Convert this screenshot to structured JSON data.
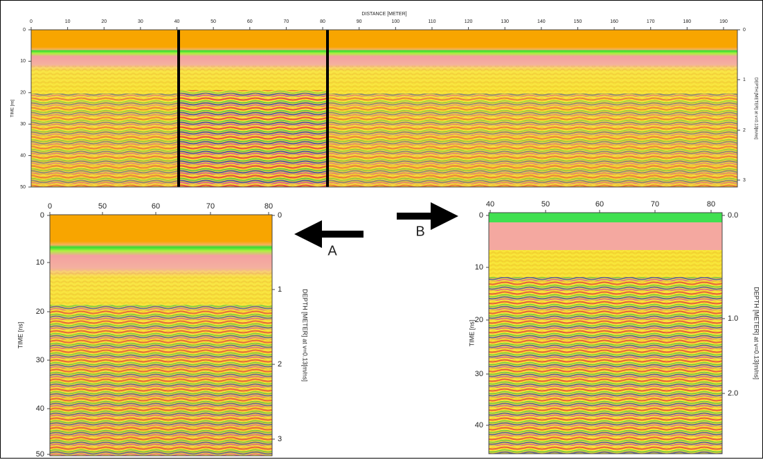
{
  "top_panel": {
    "title": "DISTANCE [METER]",
    "x_ticks": [
      "0",
      "10",
      "20",
      "30",
      "40",
      "50",
      "60",
      "70",
      "80",
      "90",
      "100",
      "110",
      "120",
      "130",
      "140",
      "150",
      "160",
      "170",
      "180",
      "190"
    ],
    "y_label": "TIME [ns]",
    "y_ticks": [
      "0",
      "10",
      "20",
      "30",
      "40",
      "50"
    ],
    "y2_label": "DEPTH [METER] at v=0.13[m/ns]",
    "y2_ticks": [
      "0",
      "1",
      "2",
      "3"
    ]
  },
  "panel_a": {
    "x_ticks": [
      "0",
      "50",
      "60",
      "70",
      "80"
    ],
    "y_label": "TIME [ns]",
    "y_ticks": [
      "0",
      "10",
      "20",
      "30",
      "40",
      "50"
    ],
    "y2_label": "DEPTH [METER] at v=0.13[m/ns]",
    "y2_ticks": [
      "0",
      "1",
      "2",
      "3"
    ]
  },
  "panel_b": {
    "x_ticks": [
      "40",
      "50",
      "60",
      "70",
      "80"
    ],
    "y_label": "TIME [ns]",
    "y_ticks": [
      "0",
      "10",
      "20",
      "30",
      "40"
    ],
    "y2_label": "DEPTH [METER] at v=0.13[m/ns]",
    "y2_ticks": [
      "0.0",
      "1.0",
      "2.0"
    ]
  },
  "arrows": {
    "a": "A",
    "b": "B"
  }
}
